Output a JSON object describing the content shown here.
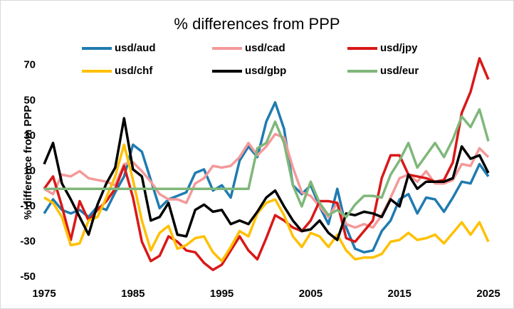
{
  "chart_data": {
    "type": "line",
    "title": "% differences from PPP",
    "y_label": "% difference from PPP",
    "x": [
      1975,
      1976,
      1977,
      1978,
      1979,
      1980,
      1981,
      1982,
      1983,
      1984,
      1985,
      1986,
      1987,
      1988,
      1989,
      1990,
      1991,
      1992,
      1993,
      1994,
      1995,
      1996,
      1997,
      1998,
      1999,
      2000,
      2001,
      2002,
      2003,
      2004,
      2005,
      2006,
      2007,
      2008,
      2009,
      2010,
      2011,
      2012,
      2013,
      2014,
      2015,
      2016,
      2017,
      2018,
      2019,
      2020,
      2021,
      2022,
      2023,
      2024,
      2025
    ],
    "xlim": [
      1975,
      2025
    ],
    "xticks": [
      1975,
      1985,
      1995,
      2005,
      2015,
      2025
    ],
    "ylim": [
      -50,
      80
    ],
    "yticks": [
      -50,
      -30,
      -10,
      10,
      30,
      50,
      70
    ],
    "series": [
      {
        "name": "usd/aud",
        "color": "#1f7bb0",
        "values": [
          -14,
          -6,
          -12,
          -14,
          -12,
          -16,
          -10,
          -12,
          -2,
          7,
          25,
          21,
          5,
          -11,
          -6,
          -4,
          -2,
          9,
          11,
          -1,
          2,
          -5,
          16,
          24,
          18,
          38,
          49,
          34,
          2,
          -3,
          2,
          -10,
          -20,
          0,
          -22,
          -34,
          -36,
          -35,
          -24,
          -18,
          -6,
          -3,
          -14,
          -5,
          -6,
          -13,
          -5,
          4,
          3,
          14,
          7
        ]
      },
      {
        "name": "usd/cad",
        "color": "#f4999a",
        "values": [
          0,
          -3,
          8,
          7,
          10,
          6,
          5,
          4,
          2,
          14,
          15,
          10,
          4,
          -3,
          -6,
          -6,
          -8,
          3,
          6,
          13,
          12,
          13,
          18,
          26,
          19,
          24,
          31,
          29,
          12,
          -2,
          -4,
          -10,
          -16,
          -8,
          -20,
          -22,
          -20,
          -22,
          -15,
          -5,
          6,
          8,
          4,
          10,
          3,
          3,
          5,
          14,
          13,
          23,
          18
        ]
      },
      {
        "name": "usd/jpy",
        "color": "#d91818",
        "values": [
          0,
          7,
          -10,
          -29,
          -7,
          -18,
          -12,
          -7,
          0,
          13,
          -5,
          -30,
          -41,
          -38,
          -27,
          -30,
          -35,
          -36,
          -42,
          -46,
          -43,
          -35,
          -27,
          -35,
          -40,
          -28,
          -15,
          -18,
          -22,
          -24,
          -18,
          -7,
          -7,
          -8,
          -28,
          -30,
          -24,
          -18,
          6,
          19,
          19,
          8,
          7,
          6,
          4,
          5,
          15,
          43,
          55,
          74,
          62
        ]
      },
      {
        "name": "usd/chf",
        "color": "#ffc000",
        "values": [
          -5,
          -8,
          -16,
          -32,
          -31,
          -18,
          -16,
          -5,
          7,
          25,
          5,
          -18,
          -35,
          -25,
          -21,
          -34,
          -32,
          -28,
          -27,
          -36,
          -41,
          -33,
          -24,
          -27,
          -14,
          -8,
          -6,
          -15,
          -27,
          -33,
          -25,
          -27,
          -33,
          -26,
          -35,
          -40,
          -39,
          -39,
          -37,
          -30,
          -29,
          -25,
          -29,
          -28,
          -26,
          -31,
          -25,
          -19,
          -26,
          -19,
          -30
        ]
      },
      {
        "name": "usd/gbp",
        "color": "#000000",
        "values": [
          14,
          26,
          3,
          -6,
          -16,
          -26,
          -9,
          3,
          12,
          40,
          11,
          7,
          -18,
          -16,
          -8,
          -26,
          -27,
          -12,
          -9,
          -13,
          -12,
          -20,
          -18,
          -20,
          -13,
          -5,
          -1,
          -10,
          -18,
          -24,
          -23,
          -18,
          -25,
          -29,
          -14,
          -15,
          -13,
          -14,
          -16,
          -6,
          -10,
          8,
          0,
          4,
          4,
          4,
          6,
          24,
          17,
          19,
          9
        ]
      },
      {
        "name": "usd/eur",
        "color": "#7fb77a",
        "values": [
          0,
          0,
          0,
          0,
          0,
          0,
          0,
          0,
          0,
          0,
          0,
          0,
          0,
          0,
          0,
          0,
          0,
          0,
          0,
          0,
          0,
          0,
          0,
          0,
          23,
          26,
          38,
          26,
          2,
          -10,
          4,
          -8,
          -15,
          -12,
          -16,
          -9,
          -4,
          -4,
          -5,
          8,
          16,
          26,
          12,
          19,
          26,
          18,
          28,
          41,
          35,
          45,
          27
        ]
      }
    ]
  }
}
